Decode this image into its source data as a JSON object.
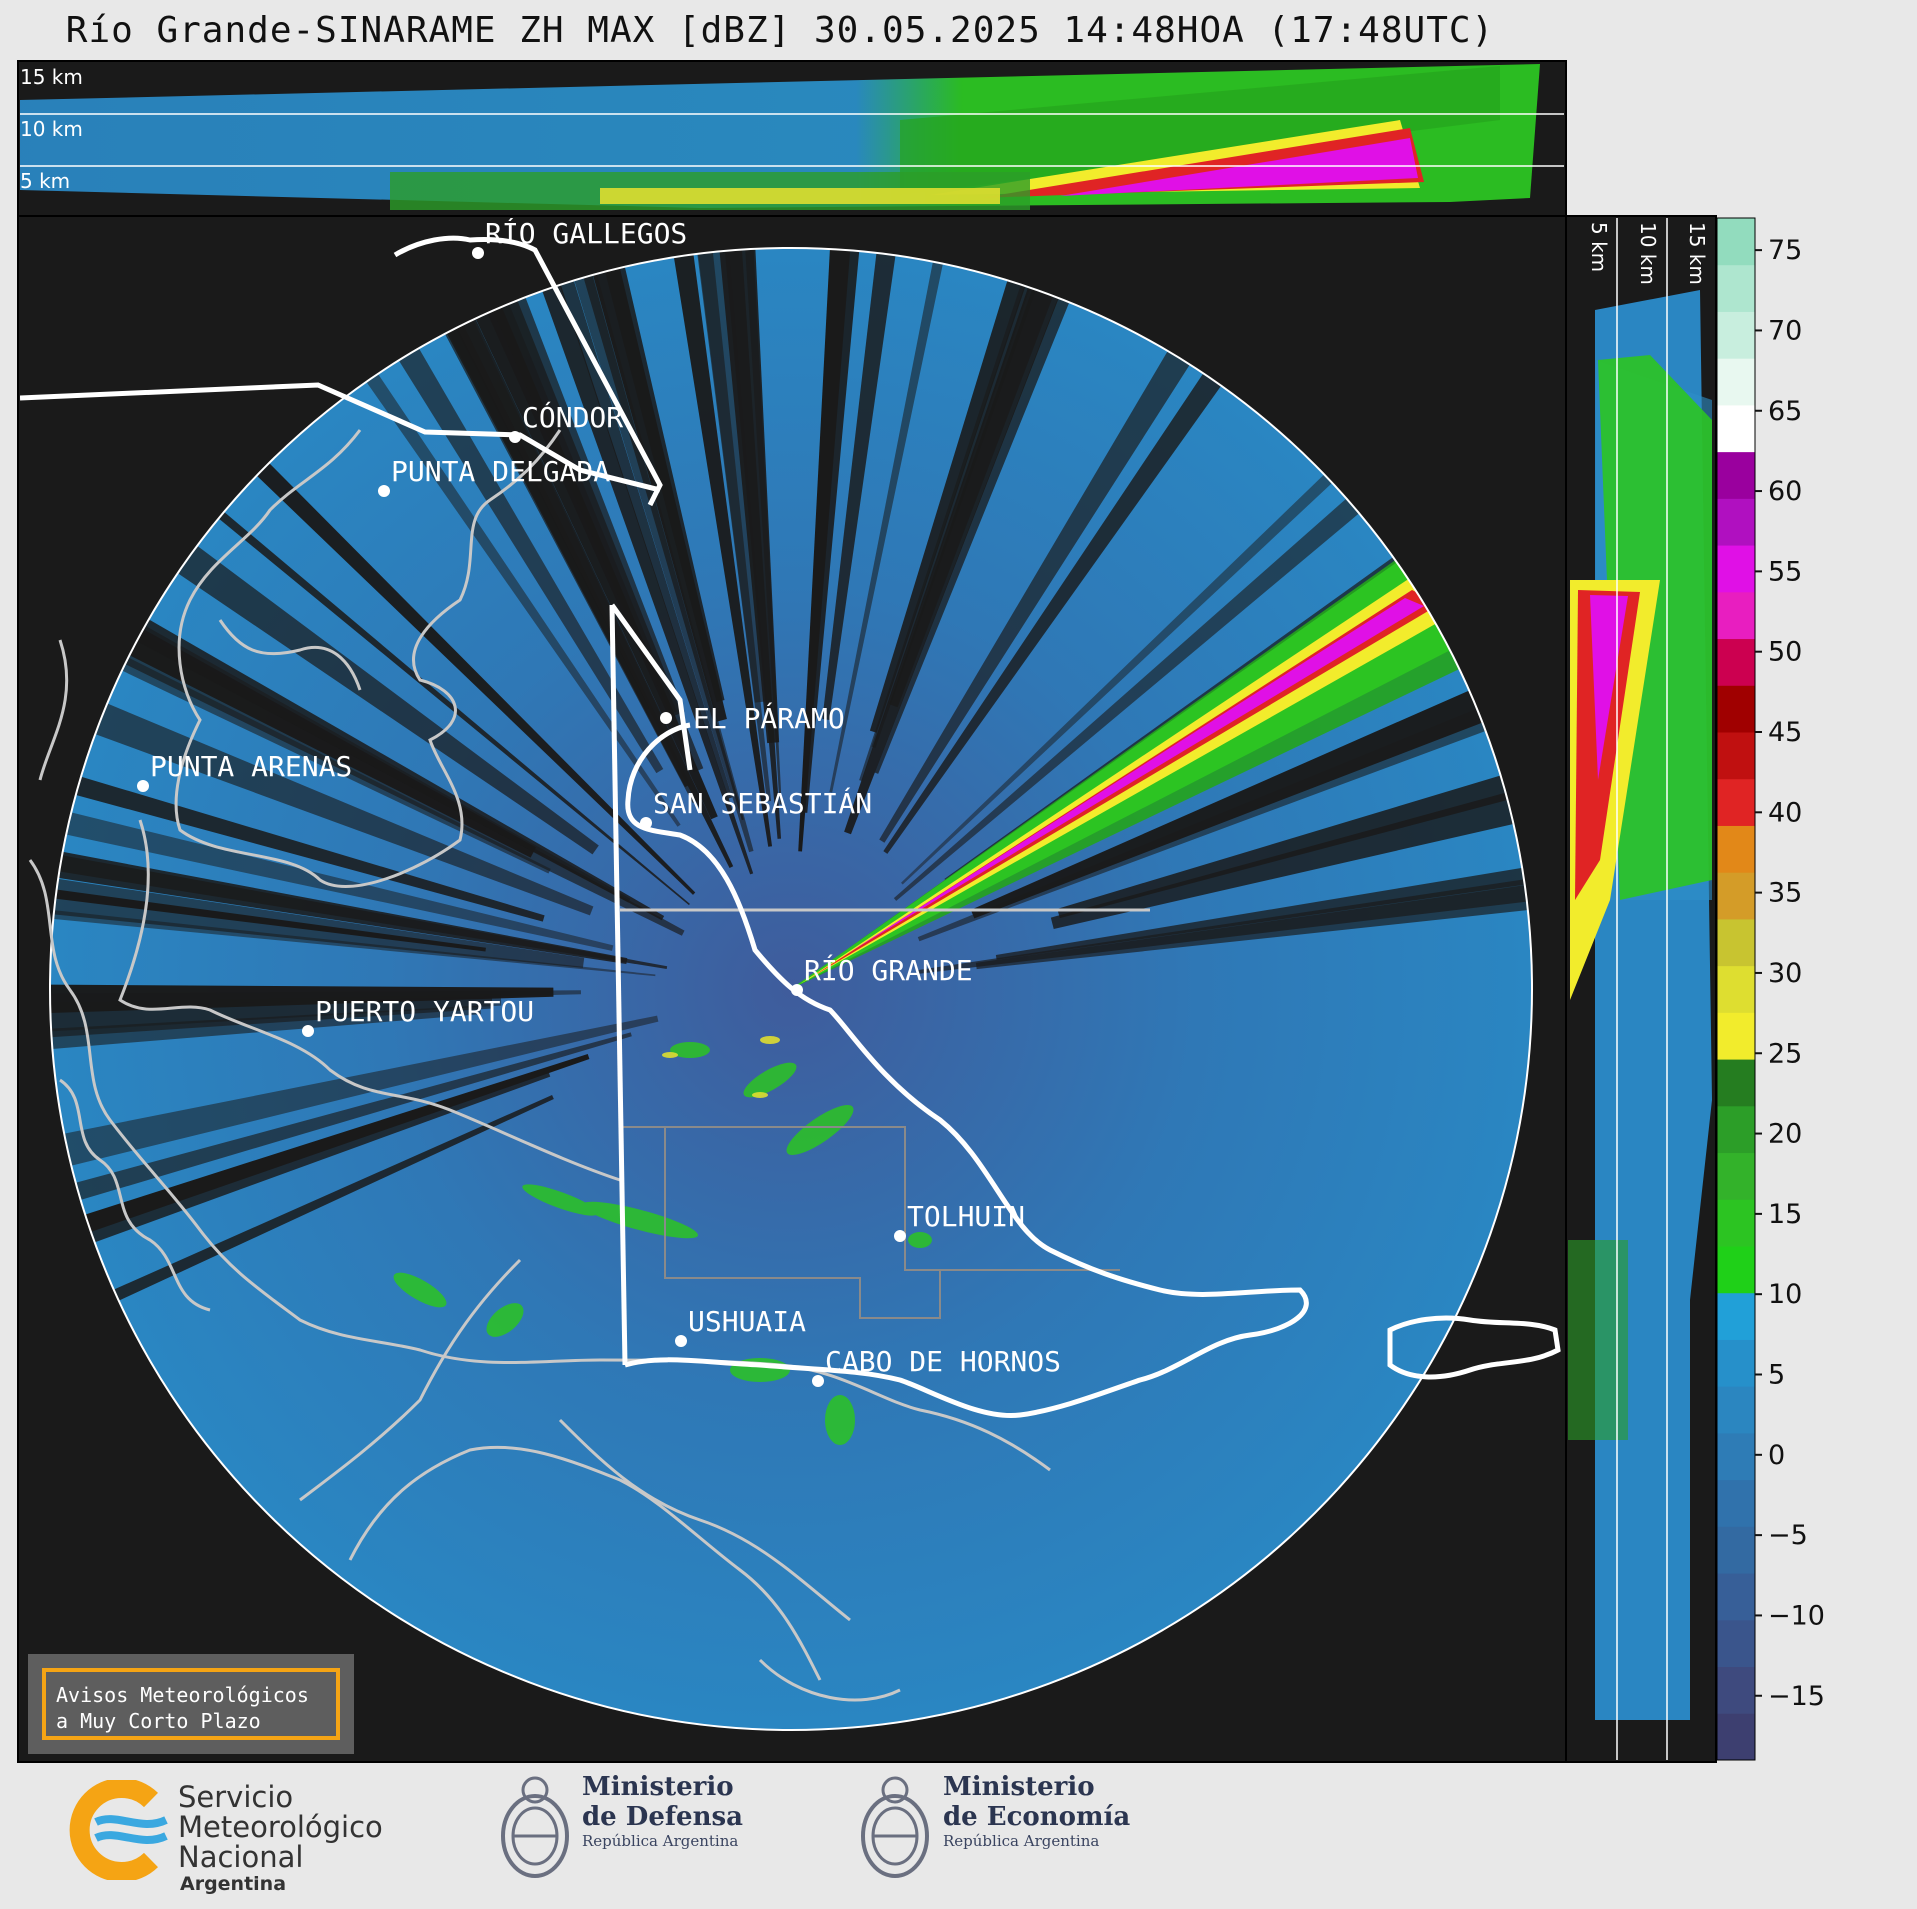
{
  "title": "Río Grande-SINARAME ZH MAX [dBZ] 30.05.2025 14:48HOA (17:48UTC)",
  "top_section_height_labels": [
    "15 km",
    "10 km",
    "5 km"
  ],
  "side_section_height_labels": [
    "5 km",
    "10 km",
    "15 km"
  ],
  "colorbar": {
    "unit": "dBZ",
    "ticks": [
      "75",
      "70",
      "65",
      "60",
      "55",
      "50",
      "45",
      "40",
      "35",
      "30",
      "25",
      "20",
      "15",
      "10",
      "5",
      "0",
      "−5",
      "−10",
      "−15"
    ],
    "range": [
      -19,
      77
    ],
    "colors": [
      "#3d3f70",
      "#3e4a7e",
      "#3a558c",
      "#375f98",
      "#336aa2",
      "#3072ac",
      "#2e7cb6",
      "#2b86c0",
      "#2690ca",
      "#21a0d8",
      "#1fd018",
      "#2cc422",
      "#33b22a",
      "#2c9e28",
      "#257d20",
      "#f2ec2c",
      "#dede30",
      "#c8c430",
      "#d49c28",
      "#e28818",
      "#e02424",
      "#c01010",
      "#a00000",
      "#cc0050",
      "#e81ec0",
      "#e010e6",
      "#b010c0",
      "#9a009e",
      "#ffffff",
      "#e8f8f0",
      "#c8eede",
      "#aee6cf",
      "#92dcbe"
    ]
  },
  "cities": [
    {
      "name": "RÍO GALLEGOS"
    },
    {
      "name": "CÓNDOR"
    },
    {
      "name": "PUNTA DELGADA"
    },
    {
      "name": "EL PÁRAMO"
    },
    {
      "name": "PUNTA ARENAS"
    },
    {
      "name": "SAN SEBASTIÁN"
    },
    {
      "name": "RÍO GRANDE"
    },
    {
      "name": "PUERTO YARTOU"
    },
    {
      "name": "TOLHUIN"
    },
    {
      "name": "USHUAIA"
    },
    {
      "name": "CABO DE HORNOS"
    }
  ],
  "alert_box": {
    "line1": "Avisos Meteorológicos",
    "line2": "a Muy Corto Plazo"
  },
  "footer": {
    "smn": {
      "line1": "Servicio",
      "line2": "Meteorológico",
      "line3": "Nacional",
      "line4": "Argentina"
    },
    "defensa": {
      "line1": "Ministerio",
      "line2": "de Defensa",
      "line3": "República Argentina"
    },
    "economia": {
      "line1": "Ministerio",
      "line2": "de Economía",
      "line3": "República Argentina"
    }
  },
  "colors": {
    "background": "#e8e8e8",
    "panel": "#1a1a1a",
    "accent": "#f5a414"
  }
}
